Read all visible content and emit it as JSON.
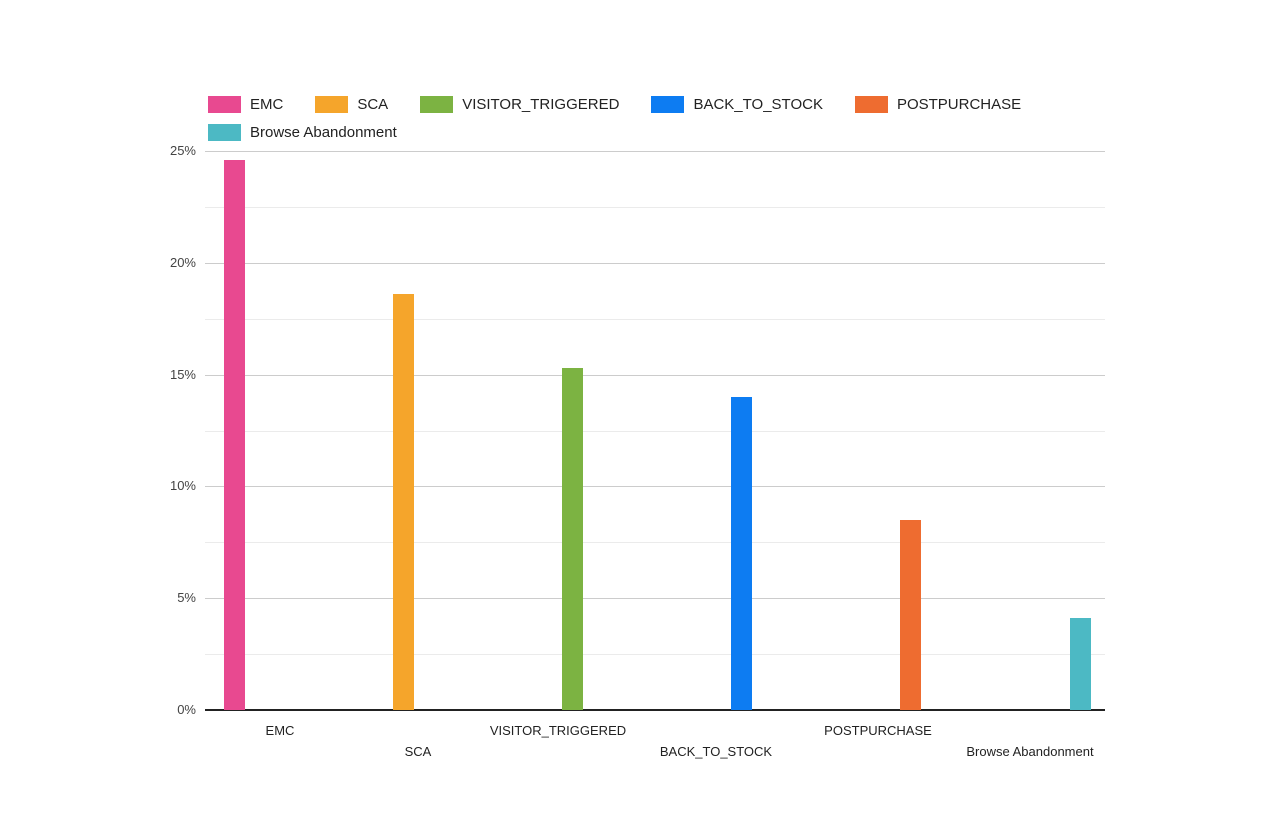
{
  "page": {
    "background": "#FFFFFF"
  },
  "chart_data": {
    "type": "bar",
    "title": "",
    "categories": [
      "EMC",
      "SCA",
      "VISITOR_TRIGGERED",
      "BACK_TO_STOCK",
      "POSTPURCHASE",
      "Browse Abandonment"
    ],
    "series": [
      {
        "name": "EMC",
        "color": "#E84990",
        "category": "EMC",
        "value": 24.6
      },
      {
        "name": "SCA",
        "color": "#F5A52B",
        "category": "SCA",
        "value": 18.6
      },
      {
        "name": "VISITOR_TRIGGERED",
        "color": "#7CB342",
        "category": "VISITOR_TRIGGERED",
        "value": 15.3
      },
      {
        "name": "BACK_TO_STOCK",
        "color": "#0D7CF2",
        "category": "BACK_TO_STOCK",
        "value": 14.0
      },
      {
        "name": "POSTPURCHASE",
        "color": "#EE6C30",
        "category": "POSTPURCHASE",
        "value": 8.5
      },
      {
        "name": "Browse Abandonment",
        "color": "#4CB9C4",
        "category": "Browse Abandonment",
        "value": 4.1
      }
    ],
    "ylabel": "",
    "xlabel": "",
    "y_axis": {
      "unit": "%",
      "min": 0,
      "max": 25,
      "major_step": 5,
      "minor_step": 2.5,
      "tick_labels": [
        "0%",
        "5%",
        "10%",
        "15%",
        "20%",
        "25%"
      ],
      "tick_values": [
        0,
        5,
        10,
        15,
        20,
        25
      ]
    },
    "legend": {
      "position": "top",
      "entries": [
        "EMC",
        "SCA",
        "VISITOR_TRIGGERED",
        "BACK_TO_STOCK",
        "POSTPURCHASE",
        "Browse Abandonment"
      ]
    },
    "grid": {
      "major_color": "#CCCCCC",
      "minor_color": "#EBEBEB",
      "axis_color": "#222222",
      "gridlines_on": true
    }
  }
}
